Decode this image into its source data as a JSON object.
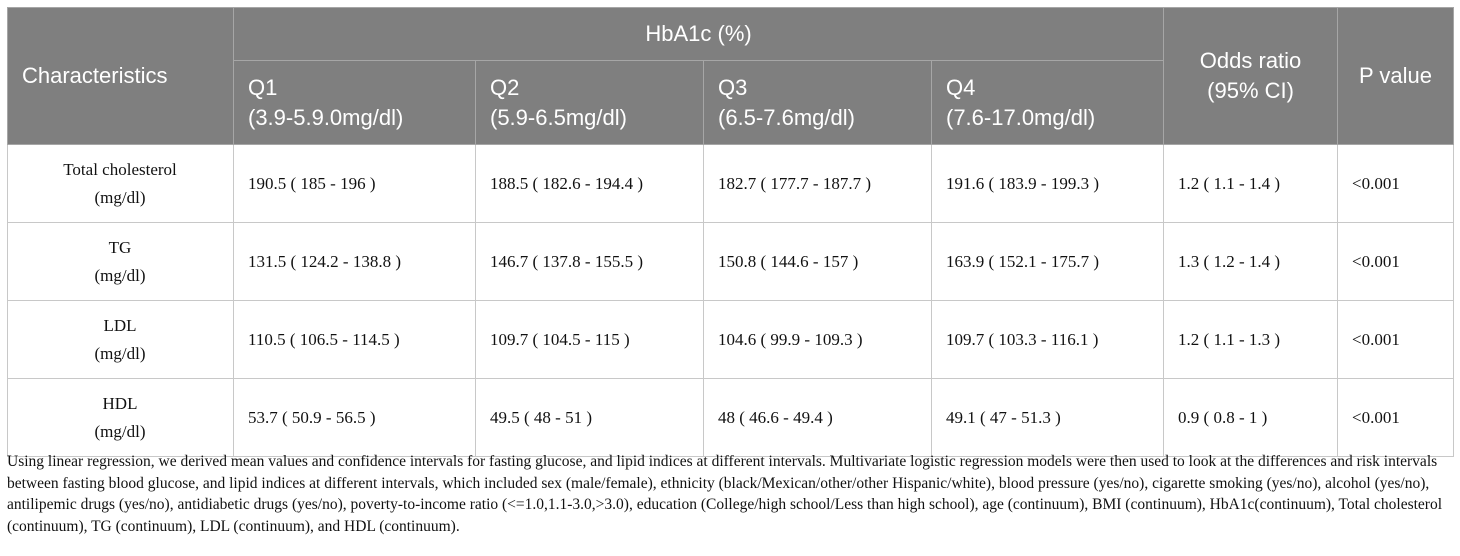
{
  "header": {
    "characteristics": "Characteristics",
    "group": "HbA1c (%)",
    "odds_line1": "Odds ratio",
    "odds_line2": "(95% CI)",
    "p_value": "P value",
    "quartiles": [
      {
        "label": "Q1",
        "range": "(3.9-5.9.0mg/dl)"
      },
      {
        "label": "Q2",
        "range": "(5.9-6.5mg/dl)"
      },
      {
        "label": "Q3",
        "range": "(6.5-7.6mg/dl)"
      },
      {
        "label": "Q4",
        "range": "(7.6-17.0mg/dl)"
      }
    ]
  },
  "rows": [
    {
      "name": "Total cholesterol",
      "unit": "(mg/dl)",
      "q1": "190.5 ( 185 - 196 )",
      "q2": "188.5 ( 182.6 - 194.4 )",
      "q3": "182.7 ( 177.7 - 187.7 )",
      "q4": "191.6 ( 183.9 - 199.3 )",
      "or": "1.2 ( 1.1 - 1.4 )",
      "p": "<0.001"
    },
    {
      "name": "TG",
      "unit": "(mg/dl)",
      "q1": "131.5 ( 124.2 - 138.8 )",
      "q2": "146.7 ( 137.8 - 155.5 )",
      "q3": "150.8 ( 144.6 - 157 )",
      "q4": "163.9 ( 152.1 - 175.7 )",
      "or": "1.3 ( 1.2 - 1.4 )",
      "p": "<0.001"
    },
    {
      "name": "LDL",
      "unit": "(mg/dl)",
      "q1": "110.5 ( 106.5 - 114.5 )",
      "q2": "109.7 ( 104.5 - 115 )",
      "q3": "104.6 ( 99.9 - 109.3 )",
      "q4": "109.7 ( 103.3 - 116.1 )",
      "or": "1.2 ( 1.1 - 1.3 )",
      "p": "<0.001"
    },
    {
      "name": "HDL",
      "unit": "(mg/dl)",
      "q1": "53.7 ( 50.9 - 56.5 )",
      "q2": "49.5 ( 48 - 51 )",
      "q3": "48 ( 46.6 - 49.4 )",
      "q4": "49.1 ( 47 - 51.3 )",
      "or": "0.9 ( 0.8 - 1 )",
      "p": "<0.001"
    }
  ],
  "footnote": "Using linear regression, we derived mean values and confidence intervals for fasting glucose, and lipid indices at different intervals. Multivariate logistic regression models were then used to look at the differences and risk intervals between fasting blood glucose, and lipid indices at different intervals, which included sex (male/female), ethnicity (black/Mexican/other/other Hispanic/white), blood pressure (yes/no), cigarette smoking (yes/no), alcohol (yes/no), antilipemic drugs (yes/no), antidiabetic drugs (yes/no), poverty-to-income ratio (<=1.0,1.1-3.0,>3.0), education (College/high school/Less than high school), age (continuum), BMI (continuum), HbA1c(continuum), Total cholesterol (continuum), TG (continuum), LDL (continuum), and HDL (continuum)."
}
